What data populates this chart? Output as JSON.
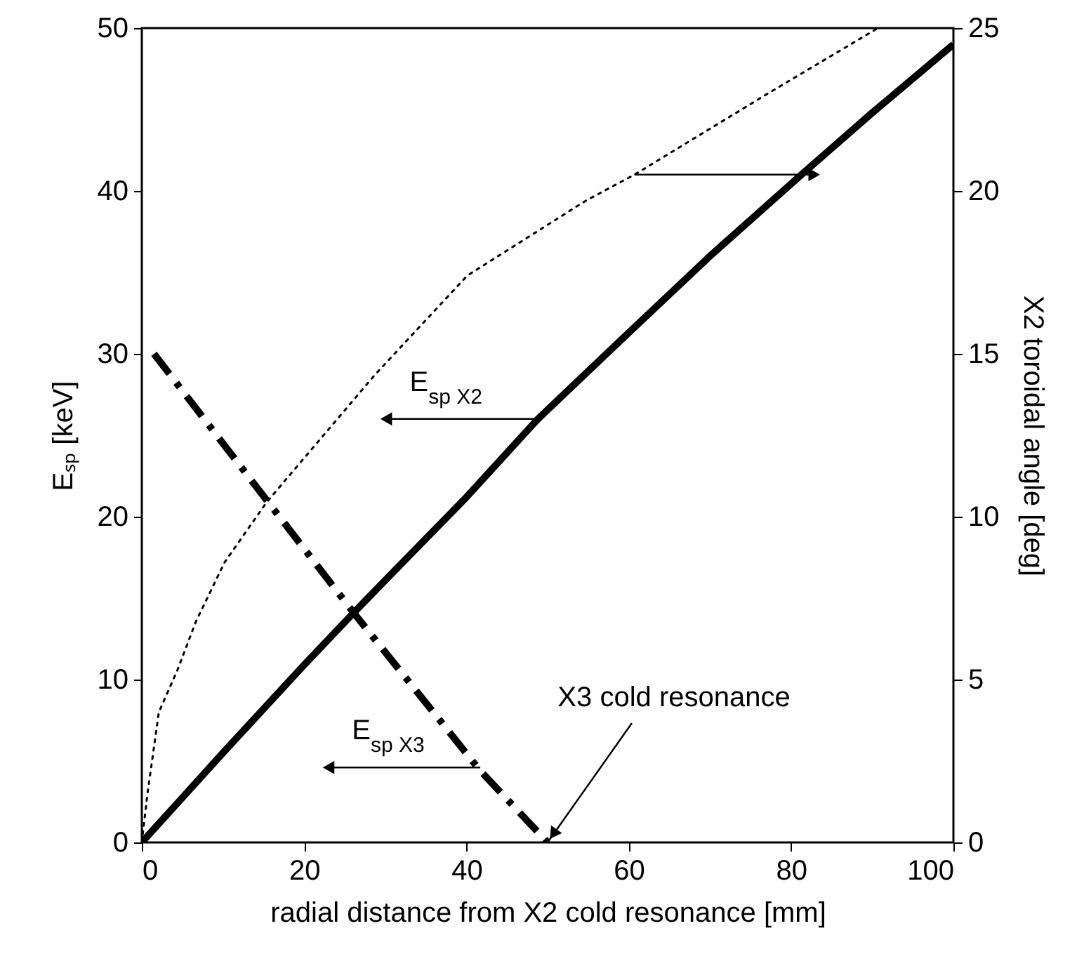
{
  "chart_data": {
    "type": "line",
    "xlabel": "radial distance from X2 cold resonance [mm]",
    "ylabel": "Eₛₚ [keV]",
    "y2label": "X2 toroidal angle [deg]",
    "xlim": [
      0,
      100
    ],
    "xticks": [
      0,
      20,
      40,
      60,
      80,
      100
    ],
    "ylim": [
      0,
      50
    ],
    "yticks": [
      0,
      10,
      20,
      30,
      40,
      50
    ],
    "y2lim": [
      0,
      25
    ],
    "y2ticks": [
      0,
      5,
      10,
      15,
      20,
      25
    ],
    "marker": "none",
    "series": [
      {
        "color": "#000000",
        "line_style": "solid",
        "x": [
          0,
          10,
          20,
          26.1,
          30,
          40,
          48.8,
          60,
          70,
          81.5,
          90,
          100
        ],
        "values": [
          0,
          5.5,
          10.9,
          14.1,
          16.1,
          21.2,
          26,
          31.3,
          36,
          41.1,
          44.8,
          49
        ]
      },
      {
        "color": "#000000",
        "line_style": "dashed",
        "x": [
          1.5,
          15.4,
          26.1,
          41.7,
          50
        ],
        "values": [
          30,
          21,
          14.1,
          4.4,
          0
        ]
      },
      {
        "color": "#000000",
        "line_style": "dotted",
        "axis": "y2",
        "x": [
          0,
          0.7,
          2.1,
          4.4,
          6.7,
          10.2,
          15.4,
          28.7,
          40.1,
          54.7,
          60.7,
          77.2,
          90.7
        ],
        "values": [
          0,
          1.5,
          4,
          5.3,
          6.8,
          8.6,
          10.45,
          14.35,
          17.4,
          19.7,
          20.5,
          23,
          25
        ]
      }
    ],
    "annotations": [
      {
        "text": "E$_{sp X2}$",
        "x": 48.8,
        "y": 26
      },
      {
        "text": "E$_{sp X3}$",
        "x": 41.7,
        "y": 4.6
      },
      {
        "text": "X3 cold resonance",
        "x": 50,
        "y": 0
      }
    ]
  }
}
